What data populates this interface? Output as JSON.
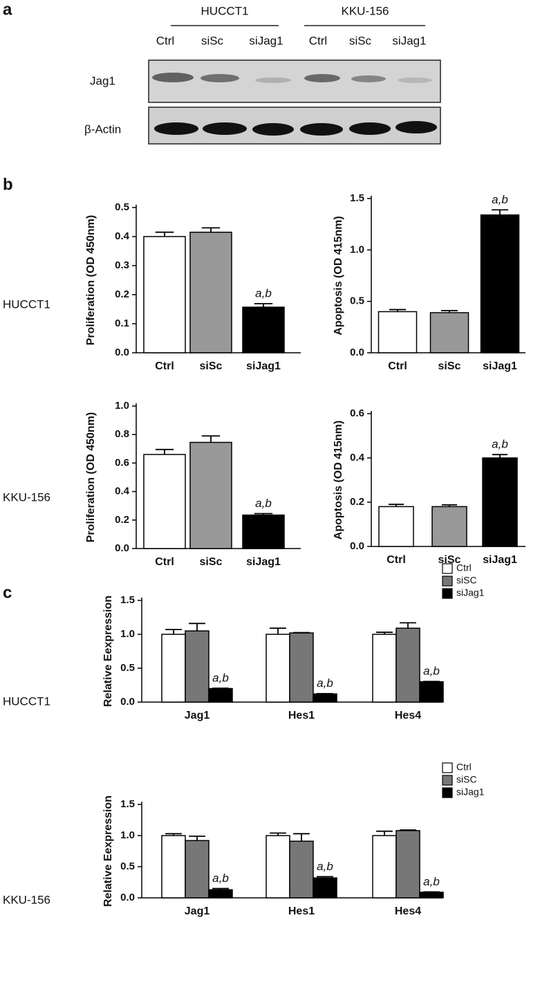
{
  "panels": [
    "a",
    "b",
    "c"
  ],
  "blot": {
    "groups": [
      "HUCCT1",
      "KKU-156"
    ],
    "lanes": [
      "Ctrl",
      "siSc",
      "siJag1",
      "Ctrl",
      "siSc",
      "siJag1"
    ],
    "rows": [
      "Jag1",
      "β-Actin"
    ]
  },
  "row_labels": [
    "HUCCT1",
    "KKU-156",
    "HUCCT1",
    "KKU-156"
  ],
  "chart_data": [
    {
      "type": "bar",
      "y_label": "Proliferation (OD 450nm)",
      "categories": [
        "Ctrl",
        "siSc",
        "siJag1"
      ],
      "values": [
        0.4,
        0.415,
        0.157
      ],
      "errors": [
        0.015,
        0.015,
        0.012
      ],
      "annotations": [
        null,
        null,
        "a,b"
      ],
      "colors": [
        "#ffffff",
        "#999999",
        "#000000"
      ],
      "ylim": [
        0,
        0.5
      ],
      "yticks": [
        {
          "value": 0,
          "label": "0.0"
        },
        0.1,
        0.2,
        0.3,
        0.4,
        0.5
      ]
    },
    {
      "type": "bar",
      "y_label": "Apoptosis (OD 415nm)",
      "categories": [
        "Ctrl",
        "siSc",
        "siJag1"
      ],
      "values": [
        0.4,
        0.39,
        1.34
      ],
      "errors": [
        0.02,
        0.02,
        0.05
      ],
      "annotations": [
        null,
        null,
        "a,b"
      ],
      "colors": [
        "#ffffff",
        "#999999",
        "#000000"
      ],
      "ylim": [
        0,
        1.5
      ],
      "yticks": [
        {
          "value": 0,
          "label": "0.0"
        },
        0.5,
        {
          "value": 1,
          "label": "1.0"
        },
        1.5
      ]
    },
    {
      "type": "bar",
      "y_label": "Proliferation (OD 450nm)",
      "categories": [
        "Ctrl",
        "siSc",
        "siJag1"
      ],
      "values": [
        0.66,
        0.745,
        0.235
      ],
      "errors": [
        0.035,
        0.045,
        0.01
      ],
      "annotations": [
        null,
        null,
        "a,b"
      ],
      "colors": [
        "#ffffff",
        "#999999",
        "#000000"
      ],
      "ylim": [
        0,
        1
      ],
      "yticks": [
        {
          "value": 0,
          "label": "0.0"
        },
        0.2,
        0.4,
        0.6,
        0.8,
        {
          "value": 1,
          "label": "1.0"
        }
      ]
    },
    {
      "type": "bar",
      "y_label": "Apoptosis (OD 415nm)",
      "categories": [
        "Ctrl",
        "siSc",
        "siJag1"
      ],
      "values": [
        0.18,
        0.18,
        0.4
      ],
      "errors": [
        0.01,
        0.008,
        0.015
      ],
      "annotations": [
        null,
        null,
        "a,b"
      ],
      "colors": [
        "#ffffff",
        "#999999",
        "#000000"
      ],
      "ylim": [
        0,
        0.6
      ],
      "yticks": [
        {
          "value": 0,
          "label": "0.0"
        },
        0.2,
        0.4,
        0.6
      ]
    },
    {
      "type": "bar",
      "y_label": "Relative Eexpression",
      "categories": [
        "Jag1",
        "Hes1",
        "Hes4"
      ],
      "ylim": [
        0,
        1.5
      ],
      "yticks": [
        {
          "value": 0,
          "label": "0.0"
        },
        0.5,
        {
          "value": 1,
          "label": "1.0"
        },
        1.5
      ],
      "series": [
        {
          "name": "Ctrl",
          "color": "#ffffff",
          "values": [
            1.0,
            1.0,
            1.0
          ],
          "errors": [
            0.07,
            0.09,
            0.03
          ],
          "annotations": [
            null,
            null,
            null
          ]
        },
        {
          "name": "siSC",
          "color": "#777777",
          "values": [
            1.05,
            1.02,
            1.09
          ],
          "errors": [
            0.11,
            0.005,
            0.08
          ],
          "annotations": [
            null,
            null,
            null
          ]
        },
        {
          "name": "siJag1",
          "color": "#000000",
          "values": [
            0.2,
            0.12,
            0.3
          ],
          "errors": [
            0.005,
            0.005,
            0.005
          ],
          "annotations": [
            "a,b",
            "a,b",
            "a,b"
          ]
        }
      ]
    },
    {
      "type": "bar",
      "y_label": "Relative Eexpression",
      "categories": [
        "Jag1",
        "Hes1",
        "Hes4"
      ],
      "ylim": [
        0,
        1.5
      ],
      "yticks": [
        {
          "value": 0,
          "label": "0.0"
        },
        0.5,
        {
          "value": 1,
          "label": "1.0"
        },
        1.5
      ],
      "series": [
        {
          "name": "Ctrl",
          "color": "#ffffff",
          "values": [
            1.0,
            1.0,
            1.0
          ],
          "errors": [
            0.03,
            0.04,
            0.07
          ],
          "annotations": [
            null,
            null,
            null
          ]
        },
        {
          "name": "siSC",
          "color": "#777777",
          "values": [
            0.92,
            0.91,
            1.08
          ],
          "errors": [
            0.07,
            0.12,
            0.01
          ],
          "annotations": [
            null,
            null,
            null
          ]
        },
        {
          "name": "siJag1",
          "color": "#000000",
          "values": [
            0.13,
            0.32,
            0.09
          ],
          "errors": [
            0.02,
            0.02,
            0.005
          ],
          "annotations": [
            "a,b",
            "a,b",
            "a,b"
          ]
        }
      ]
    }
  ]
}
